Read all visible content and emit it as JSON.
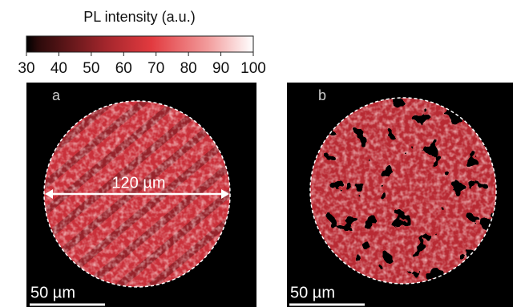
{
  "colorbar": {
    "label": "PL intensity (a.u.)",
    "lim": [
      30,
      100
    ],
    "ticks": [
      30,
      40,
      50,
      60,
      70,
      80,
      90,
      100
    ]
  },
  "panels": [
    {
      "label": "a",
      "annotation": "120 µm",
      "scale_bar": "50 µm"
    },
    {
      "label": "b",
      "scale_bar": "50 µm"
    }
  ]
}
